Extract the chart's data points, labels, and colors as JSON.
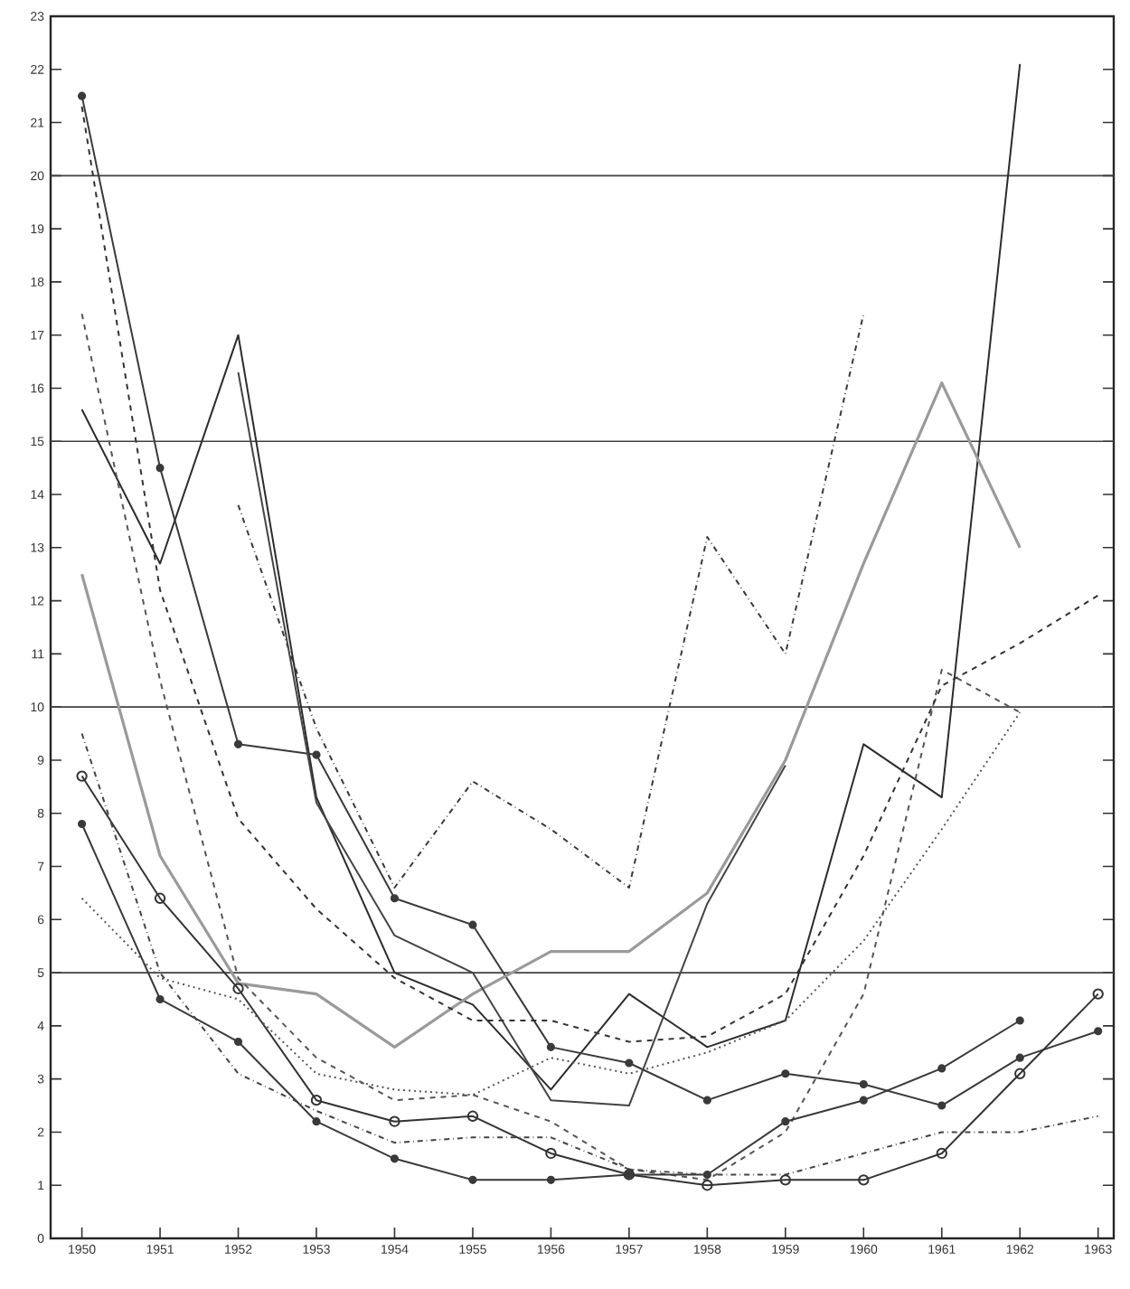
{
  "chart_data": {
    "type": "line",
    "categories": [
      "1950",
      "1951",
      "1952",
      "1953",
      "1954",
      "1955",
      "1956",
      "1957",
      "1958",
      "1959",
      "1960",
      "1961",
      "1962",
      "1963"
    ],
    "series": [
      {
        "color": "#2b2b2b",
        "line_style": "solid",
        "marker": "none",
        "values": [
          15.6,
          12.7,
          17.0,
          8.3,
          5.0,
          4.4,
          2.8,
          4.6,
          3.6,
          4.1,
          9.3,
          8.3,
          22.1,
          null
        ]
      },
      {
        "color": "#3a3a3a",
        "line_style": "solid",
        "marker": "circle",
        "values": [
          21.5,
          14.5,
          9.3,
          9.1,
          6.4,
          5.9,
          3.6,
          3.3,
          2.6,
          3.1,
          2.9,
          2.5,
          3.4,
          3.9
        ]
      },
      {
        "color": "#9a9a9a",
        "line_style": "solid",
        "marker": "none",
        "values": [
          12.5,
          7.2,
          4.8,
          4.6,
          3.6,
          4.6,
          5.4,
          5.4,
          6.5,
          9.0,
          12.7,
          16.1,
          13.0,
          null
        ]
      },
      {
        "color": "#3a3a3a",
        "line_style": "dashdotted",
        "marker": "none",
        "values": [
          null,
          null,
          13.8,
          9.6,
          6.6,
          8.6,
          7.7,
          6.6,
          13.2,
          11.0,
          17.4,
          null,
          null,
          null
        ]
      },
      {
        "color": "#444444",
        "line_style": "solid",
        "marker": "none",
        "values": [
          null,
          null,
          16.3,
          8.2,
          5.7,
          5.0,
          2.6,
          2.5,
          6.3,
          8.9,
          null,
          null,
          null,
          null
        ]
      },
      {
        "color": "#555555",
        "line_style": "dashed",
        "marker": "none",
        "values": [
          17.4,
          10.5,
          4.9,
          3.4,
          2.6,
          2.7,
          2.2,
          1.3,
          1.1,
          2.0,
          4.6,
          10.7,
          9.9,
          null
        ]
      },
      {
        "color": "#333333",
        "line_style": "dashed",
        "marker": "none",
        "values": [
          21.3,
          12.2,
          7.9,
          6.2,
          4.9,
          4.1,
          4.1,
          3.7,
          3.8,
          4.6,
          7.2,
          10.4,
          11.2,
          12.1
        ]
      },
      {
        "color": "#333333",
        "line_style": "solid",
        "marker": "open circle",
        "values": [
          8.7,
          6.4,
          4.7,
          2.6,
          2.2,
          2.3,
          1.6,
          1.2,
          1.0,
          1.1,
          1.1,
          1.6,
          3.1,
          4.6
        ]
      },
      {
        "color": "#3a3a3a",
        "line_style": "solid",
        "marker": "circle",
        "values": [
          7.8,
          4.5,
          3.7,
          2.2,
          1.5,
          1.1,
          1.1,
          1.2,
          1.2,
          2.2,
          2.6,
          3.2,
          4.1,
          null
        ]
      },
      {
        "color": "#555555",
        "line_style": "dotted",
        "marker": "none",
        "values": [
          6.4,
          4.9,
          4.5,
          3.1,
          2.8,
          2.7,
          3.4,
          3.1,
          3.5,
          4.1,
          5.6,
          7.7,
          9.9,
          null
        ]
      },
      {
        "color": "#444444",
        "line_style": "dashdotted",
        "marker": "none",
        "values": [
          9.5,
          5.0,
          3.1,
          2.4,
          1.8,
          1.9,
          1.9,
          1.3,
          1.2,
          1.2,
          1.6,
          2.0,
          2.0,
          2.3
        ]
      }
    ],
    "ylim": [
      0,
      23
    ],
    "yticks": [
      0,
      1,
      2,
      3,
      4,
      5,
      6,
      7,
      8,
      9,
      10,
      11,
      12,
      13,
      14,
      15,
      16,
      17,
      18,
      19,
      20,
      21,
      22,
      23
    ],
    "ref_lines": [
      {
        "axis": "y",
        "value": 5
      },
      {
        "axis": "y",
        "value": 10
      },
      {
        "axis": "y",
        "value": 15
      },
      {
        "axis": "y",
        "value": 20
      }
    ]
  }
}
